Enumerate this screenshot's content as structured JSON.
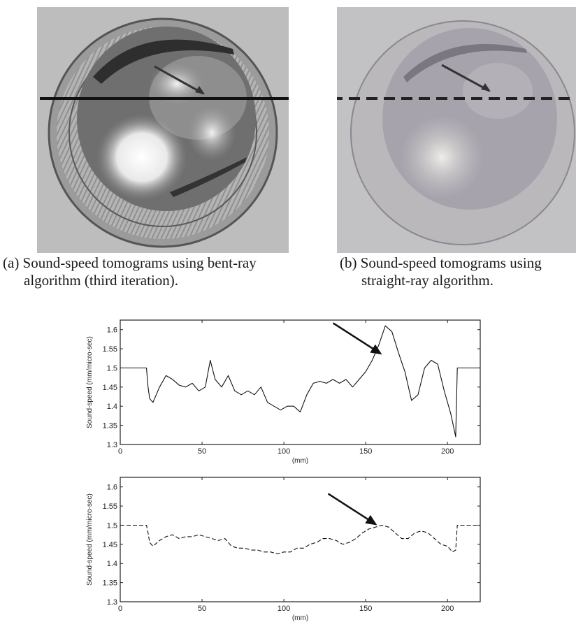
{
  "captions": {
    "a": {
      "line1": "(a) Sound-speed tomograms using bent-ray",
      "line2": "algorithm (third iteration)."
    },
    "b": {
      "line1": "(b) Sound-speed tomograms using",
      "line2": "straight-ray algorithm."
    }
  },
  "chart_data": [
    {
      "type": "line",
      "title": "",
      "xlabel": "(mm)",
      "ylabel": "Sound-speed (mm/micro-sec)",
      "xlim": [
        0,
        220
      ],
      "ylim": [
        1.3,
        1.625
      ],
      "xticks": [
        "0",
        "50",
        "100",
        "150",
        "200"
      ],
      "yticks": [
        "1.3",
        "1.35",
        "1.4",
        "1.45",
        "1.5",
        "1.55",
        "1.6"
      ],
      "line_style": "solid",
      "grid": false,
      "series": [
        {
          "x": [
            0,
            16,
            17,
            18,
            20,
            24,
            28,
            32,
            36,
            40,
            44,
            48,
            52,
            55,
            58,
            62,
            66,
            70,
            74,
            78,
            82,
            86,
            90,
            94,
            98,
            102,
            106,
            110,
            114,
            118,
            122,
            126,
            130,
            134,
            138,
            142,
            146,
            150,
            154,
            158,
            162,
            166,
            170,
            174,
            178,
            182,
            186,
            190,
            194,
            198,
            202,
            205,
            206,
            207,
            220
          ],
          "y": [
            1.5,
            1.5,
            1.45,
            1.42,
            1.41,
            1.45,
            1.48,
            1.47,
            1.455,
            1.45,
            1.46,
            1.44,
            1.45,
            1.52,
            1.47,
            1.45,
            1.48,
            1.44,
            1.43,
            1.44,
            1.43,
            1.45,
            1.41,
            1.4,
            1.39,
            1.4,
            1.4,
            1.385,
            1.43,
            1.46,
            1.465,
            1.46,
            1.47,
            1.46,
            1.47,
            1.45,
            1.47,
            1.49,
            1.52,
            1.56,
            1.61,
            1.595,
            1.54,
            1.49,
            1.415,
            1.43,
            1.5,
            1.52,
            1.51,
            1.44,
            1.38,
            1.32,
            1.5,
            1.5,
            1.5
          ]
        }
      ],
      "annotations": [
        {
          "type": "arrow",
          "x": 160,
          "y": 1.535
        }
      ]
    },
    {
      "type": "line",
      "title": "",
      "xlabel": "(mm)",
      "ylabel": "Sound-speed (mm/micro-sec)",
      "xlim": [
        0,
        220
      ],
      "ylim": [
        1.3,
        1.625
      ],
      "xticks": [
        "0",
        "50",
        "100",
        "150",
        "200"
      ],
      "yticks": [
        "1.3",
        "1.35",
        "1.4",
        "1.45",
        "1.5",
        "1.55",
        "1.6"
      ],
      "line_style": "dashed",
      "grid": false,
      "series": [
        {
          "x": [
            0,
            16,
            17,
            18,
            20,
            24,
            28,
            32,
            36,
            40,
            44,
            48,
            52,
            56,
            60,
            64,
            68,
            72,
            76,
            80,
            84,
            88,
            92,
            96,
            100,
            104,
            108,
            112,
            116,
            120,
            124,
            128,
            132,
            136,
            140,
            144,
            148,
            152,
            156,
            160,
            164,
            168,
            172,
            176,
            180,
            184,
            188,
            192,
            196,
            200,
            203,
            205,
            206,
            220
          ],
          "y": [
            1.5,
            1.5,
            1.48,
            1.455,
            1.445,
            1.46,
            1.47,
            1.475,
            1.465,
            1.47,
            1.47,
            1.475,
            1.47,
            1.465,
            1.46,
            1.465,
            1.445,
            1.44,
            1.44,
            1.435,
            1.435,
            1.43,
            1.43,
            1.425,
            1.43,
            1.43,
            1.44,
            1.44,
            1.45,
            1.455,
            1.465,
            1.465,
            1.46,
            1.45,
            1.455,
            1.465,
            1.48,
            1.49,
            1.495,
            1.5,
            1.495,
            1.48,
            1.465,
            1.465,
            1.48,
            1.485,
            1.48,
            1.465,
            1.45,
            1.445,
            1.43,
            1.435,
            1.5,
            1.5
          ]
        }
      ],
      "annotations": [
        {
          "type": "arrow",
          "x": 157,
          "y": 1.5
        }
      ]
    }
  ]
}
